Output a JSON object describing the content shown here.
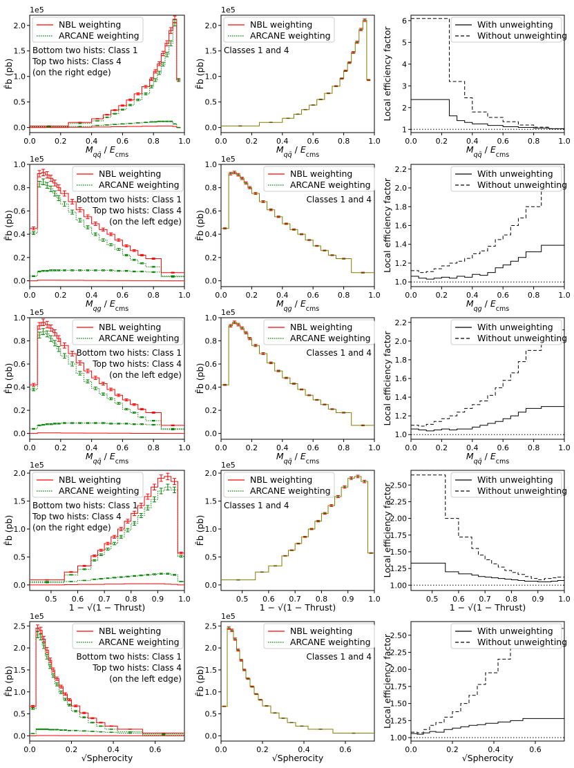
{
  "colors": {
    "nbl": "#ff0000",
    "arcane": "#008000",
    "sum": "#7f7f00",
    "line": "#000000"
  },
  "legend_labels": {
    "nbl": "NBL weighting",
    "arcane": "ARCANE weighting",
    "with": "With unweighting",
    "without": "Without unweighting"
  },
  "axis_labels": {
    "yleft": "F̂b (pb)",
    "yright": "Local efficiency factor",
    "sci": "1e5"
  },
  "chart_data": [
    {
      "row": 1,
      "xlabel": "M_qq̄ / E_cms",
      "xlim": [
        0,
        1
      ],
      "xticks": [
        0,
        0.2,
        0.4,
        0.6,
        0.8,
        1.0
      ],
      "xtick_labels": [
        "0.0",
        "0.2",
        "0.4",
        "0.6",
        "0.8",
        "1.0"
      ],
      "ylim": [
        -0.1,
        2.2
      ],
      "yticks": [
        0,
        0.5,
        1.0,
        1.5,
        2.0
      ],
      "ytick_labels": [
        "0.0",
        "0.5",
        "1.0",
        "1.5",
        "2.0"
      ],
      "note": [
        "Bottom two hists: Class 1",
        "Top two hists: Class 4",
        "(on the right edge)"
      ],
      "note_align": "left",
      "middle_note": "Classes 1 and 4",
      "middle_note_pos": "top-left",
      "edges": [
        0,
        0.25,
        0.4,
        0.475,
        0.525,
        0.575,
        0.625,
        0.675,
        0.725,
        0.775,
        0.8,
        0.825,
        0.85,
        0.875,
        0.9,
        0.925,
        0.95,
        0.975,
        1.0
      ],
      "nbl_top": [
        0.03,
        0.1,
        0.17,
        0.25,
        0.34,
        0.43,
        0.54,
        0.66,
        0.8,
        0.95,
        1.1,
        1.25,
        1.45,
        1.65,
        1.9,
        2.12,
        0.93
      ],
      "arcane_top": [
        0.02,
        0.08,
        0.13,
        0.2,
        0.27,
        0.35,
        0.44,
        0.54,
        0.66,
        0.8,
        0.93,
        1.07,
        1.24,
        1.43,
        1.65,
        2.05,
        0.93
      ],
      "nbl_bot": [
        0.0,
        0.005,
        0.01,
        0.01,
        0.015,
        0.015,
        0.02,
        0.02,
        0.025,
        0.025,
        0.025,
        0.03,
        0.03,
        0.03,
        0.03,
        0.02,
        0.0
      ],
      "arcane_bot": [
        0.01,
        0.02,
        0.04,
        0.05,
        0.06,
        0.07,
        0.08,
        0.09,
        0.1,
        0.11,
        0.11,
        0.12,
        0.12,
        0.12,
        0.12,
        0.07,
        0.0
      ],
      "sum": [
        0.03,
        0.1,
        0.18,
        0.26,
        0.35,
        0.44,
        0.55,
        0.67,
        0.81,
        0.96,
        1.11,
        1.27,
        1.47,
        1.67,
        1.92,
        2.1,
        0.93
      ],
      "eff_ylim": [
        0.85,
        6.25
      ],
      "eff_yticks": [
        1,
        2,
        3,
        4,
        5,
        6
      ],
      "eff_ytick_labels": [
        "1",
        "2",
        "3",
        "4",
        "5",
        "6"
      ],
      "eff_edges": [
        0,
        0.25,
        0.3,
        0.35,
        0.4,
        0.5,
        0.6,
        0.7,
        0.8,
        0.9,
        1.0
      ],
      "eff_with": [
        2.37,
        1.62,
        1.4,
        1.32,
        1.25,
        1.18,
        1.12,
        1.09,
        1.06,
        1.03
      ],
      "eff_without": [
        6.1,
        3.2,
        3.2,
        2.45,
        1.8,
        1.55,
        1.35,
        1.2,
        1.1,
        1.03
      ]
    },
    {
      "row": 2,
      "xlabel": "M_qg / E_cms",
      "xlim": [
        0,
        1
      ],
      "xticks": [
        0,
        0.2,
        0.4,
        0.6,
        0.8,
        1.0
      ],
      "xtick_labels": [
        "0.0",
        "0.2",
        "0.4",
        "0.6",
        "0.8",
        "1.0"
      ],
      "ylim": [
        -0.05,
        1.0
      ],
      "yticks": [
        0,
        0.2,
        0.4,
        0.6,
        0.8,
        1.0
      ],
      "ytick_labels": [
        "0.0",
        "0.2",
        "0.4",
        "0.6",
        "0.8",
        "1.0"
      ],
      "note": [
        "Bottom two hists: Class 1",
        "Top two hists: Class 4",
        "(on the left edge)"
      ],
      "note_align": "right",
      "middle_note": "Classes 1 and 4",
      "middle_note_pos": "top-right",
      "edges": [
        0,
        0.05,
        0.075,
        0.1,
        0.125,
        0.15,
        0.175,
        0.2,
        0.25,
        0.3,
        0.35,
        0.4,
        0.45,
        0.5,
        0.55,
        0.6,
        0.65,
        0.7,
        0.75,
        0.85,
        1.0
      ],
      "nbl_top": [
        0.45,
        0.92,
        0.93,
        0.91,
        0.88,
        0.84,
        0.8,
        0.75,
        0.68,
        0.61,
        0.55,
        0.49,
        0.44,
        0.4,
        0.35,
        0.3,
        0.26,
        0.22,
        0.19,
        0.07
      ],
      "arcane_top": [
        0.41,
        0.83,
        0.85,
        0.82,
        0.79,
        0.75,
        0.71,
        0.66,
        0.59,
        0.52,
        0.46,
        0.4,
        0.35,
        0.31,
        0.27,
        0.22,
        0.18,
        0.15,
        0.12,
        0.04
      ],
      "nbl_bot": [
        0.0,
        0.005,
        0.005,
        0.005,
        0.005,
        0.005,
        0.005,
        0.004,
        0.004,
        0.004,
        0.003,
        0.003,
        0.003,
        0.002,
        0.002,
        0.002,
        0.001,
        0.001,
        0.001,
        0.0
      ],
      "arcane_bot": [
        0.04,
        0.08,
        0.085,
        0.085,
        0.09,
        0.09,
        0.09,
        0.09,
        0.09,
        0.09,
        0.09,
        0.09,
        0.09,
        0.09,
        0.085,
        0.085,
        0.08,
        0.08,
        0.075,
        0.035
      ],
      "sum": [
        0.45,
        0.92,
        0.93,
        0.91,
        0.88,
        0.84,
        0.8,
        0.75,
        0.68,
        0.61,
        0.55,
        0.49,
        0.44,
        0.4,
        0.35,
        0.3,
        0.26,
        0.22,
        0.19,
        0.07
      ],
      "eff_ylim": [
        0.95,
        2.25
      ],
      "eff_yticks": [
        1.0,
        1.2,
        1.4,
        1.6,
        1.8,
        2.0,
        2.2
      ],
      "eff_ytick_labels": [
        "1.0",
        "1.2",
        "1.4",
        "1.6",
        "1.8",
        "2.0",
        "2.2"
      ],
      "eff_edges": [
        0,
        0.05,
        0.1,
        0.15,
        0.2,
        0.25,
        0.3,
        0.35,
        0.4,
        0.45,
        0.5,
        0.55,
        0.6,
        0.65,
        0.7,
        0.75,
        0.85,
        1.0
      ],
      "eff_with": [
        1.06,
        1.04,
        1.03,
        1.04,
        1.05,
        1.04,
        1.06,
        1.05,
        1.08,
        1.07,
        1.1,
        1.15,
        1.18,
        1.22,
        1.26,
        1.32,
        1.39
      ],
      "eff_without": [
        1.12,
        1.1,
        1.11,
        1.14,
        1.17,
        1.2,
        1.22,
        1.25,
        1.3,
        1.33,
        1.38,
        1.45,
        1.5,
        1.6,
        1.68,
        1.8,
        2.22
      ]
    },
    {
      "row": 3,
      "xlabel": "M_qq̄ / E_cms",
      "xlim": [
        0,
        1
      ],
      "xticks": [
        0,
        0.2,
        0.4,
        0.6,
        0.8,
        1.0
      ],
      "xtick_labels": [
        "0.0",
        "0.2",
        "0.4",
        "0.6",
        "0.8",
        "1.0"
      ],
      "ylim": [
        -0.05,
        1.0
      ],
      "yticks": [
        0,
        0.2,
        0.4,
        0.6,
        0.8,
        1.0
      ],
      "ytick_labels": [
        "0.0",
        "0.2",
        "0.4",
        "0.6",
        "0.8",
        "1.0"
      ],
      "note": [
        "Bottom two hists: Class 1",
        "Top two hists: Class 4",
        "(on the left edge)"
      ],
      "note_align": "right",
      "middle_note": "Classes 1 and 4",
      "middle_note_pos": "top-right",
      "edges": [
        0,
        0.05,
        0.075,
        0.1,
        0.125,
        0.15,
        0.175,
        0.2,
        0.25,
        0.3,
        0.35,
        0.4,
        0.45,
        0.5,
        0.55,
        0.6,
        0.65,
        0.7,
        0.75,
        0.85,
        1.0
      ],
      "nbl_top": [
        0.42,
        0.93,
        0.96,
        0.94,
        0.91,
        0.87,
        0.82,
        0.76,
        0.69,
        0.61,
        0.54,
        0.48,
        0.43,
        0.38,
        0.33,
        0.29,
        0.25,
        0.21,
        0.18,
        0.07
      ],
      "arcane_top": [
        0.38,
        0.85,
        0.88,
        0.86,
        0.82,
        0.78,
        0.73,
        0.67,
        0.6,
        0.52,
        0.45,
        0.39,
        0.34,
        0.3,
        0.26,
        0.21,
        0.18,
        0.14,
        0.11,
        0.04
      ],
      "nbl_bot": [
        0.0,
        0.005,
        0.005,
        0.005,
        0.005,
        0.005,
        0.005,
        0.004,
        0.004,
        0.004,
        0.003,
        0.003,
        0.003,
        0.002,
        0.002,
        0.002,
        0.001,
        0.001,
        0.001,
        0.0
      ],
      "arcane_bot": [
        0.04,
        0.07,
        0.075,
        0.08,
        0.08,
        0.085,
        0.085,
        0.09,
        0.09,
        0.09,
        0.09,
        0.09,
        0.09,
        0.085,
        0.085,
        0.085,
        0.08,
        0.08,
        0.075,
        0.035
      ],
      "sum": [
        0.42,
        0.93,
        0.96,
        0.94,
        0.91,
        0.87,
        0.82,
        0.76,
        0.69,
        0.61,
        0.54,
        0.48,
        0.43,
        0.38,
        0.33,
        0.29,
        0.25,
        0.21,
        0.18,
        0.07
      ],
      "eff_ylim": [
        0.95,
        2.25
      ],
      "eff_yticks": [
        1.0,
        1.2,
        1.4,
        1.6,
        1.8,
        2.0,
        2.2
      ],
      "eff_ytick_labels": [
        "1.0",
        "1.2",
        "1.4",
        "1.6",
        "1.8",
        "2.0",
        "2.2"
      ],
      "eff_edges": [
        0,
        0.05,
        0.1,
        0.15,
        0.2,
        0.25,
        0.3,
        0.35,
        0.4,
        0.45,
        0.5,
        0.55,
        0.6,
        0.65,
        0.7,
        0.75,
        0.85,
        1.0
      ],
      "eff_with": [
        1.06,
        1.05,
        1.04,
        1.05,
        1.06,
        1.05,
        1.06,
        1.06,
        1.08,
        1.1,
        1.12,
        1.14,
        1.17,
        1.2,
        1.24,
        1.28,
        1.3
      ],
      "eff_without": [
        1.1,
        1.09,
        1.11,
        1.14,
        1.17,
        1.2,
        1.24,
        1.28,
        1.32,
        1.36,
        1.42,
        1.5,
        1.58,
        1.66,
        1.78,
        1.9,
        2.12
      ]
    },
    {
      "row": 4,
      "xlabel": "1 − √(1 − Thrust)",
      "xlim": [
        0.42,
        1.0
      ],
      "xticks": [
        0.5,
        0.6,
        0.7,
        0.8,
        0.9,
        1.0
      ],
      "xtick_labels": [
        "0.5",
        "0.6",
        "0.7",
        "0.8",
        "0.9",
        "1.0"
      ],
      "ylim": [
        -0.1,
        2.05
      ],
      "yticks": [
        0,
        0.5,
        1.0,
        1.5,
        2.0
      ],
      "ytick_labels": [
        "0.0",
        "0.5",
        "1.0",
        "1.5",
        "2.0"
      ],
      "note": [
        "Bottom two hists: Class 1",
        "Top two hists: Class 4",
        "(on the right edge)"
      ],
      "note_align": "left",
      "middle_note": "Classes 1 and 4",
      "middle_note_pos": "top-left",
      "edges": [
        0.42,
        0.55,
        0.6,
        0.65,
        0.675,
        0.7,
        0.725,
        0.75,
        0.775,
        0.8,
        0.825,
        0.85,
        0.875,
        0.9,
        0.925,
        0.95,
        0.975,
        1.0
      ],
      "nbl_top": [
        0.09,
        0.23,
        0.34,
        0.52,
        0.62,
        0.74,
        0.86,
        1.0,
        1.14,
        1.28,
        1.42,
        1.58,
        1.75,
        1.91,
        1.94,
        1.85,
        0.57
      ],
      "arcane_top": [
        0.06,
        0.18,
        0.28,
        0.44,
        0.54,
        0.64,
        0.74,
        0.86,
        0.98,
        1.1,
        1.24,
        1.38,
        1.53,
        1.68,
        1.75,
        1.7,
        0.51
      ],
      "nbl_bot": [
        0.0,
        0.005,
        0.01,
        0.01,
        0.01,
        0.015,
        0.015,
        0.015,
        0.02,
        0.02,
        0.02,
        0.02,
        0.02,
        0.02,
        0.015,
        0.01,
        0.0
      ],
      "arcane_bot": [
        0.04,
        0.06,
        0.08,
        0.1,
        0.11,
        0.12,
        0.13,
        0.14,
        0.15,
        0.16,
        0.17,
        0.18,
        0.19,
        0.2,
        0.2,
        0.18,
        0.06
      ],
      "sum": [
        0.09,
        0.23,
        0.34,
        0.52,
        0.62,
        0.74,
        0.86,
        1.0,
        1.14,
        1.28,
        1.42,
        1.58,
        1.75,
        1.91,
        1.94,
        1.85,
        0.57
      ],
      "eff_ylim": [
        0.92,
        2.72
      ],
      "eff_yticks": [
        1.0,
        1.25,
        1.5,
        1.75,
        2.0,
        2.25,
        2.5
      ],
      "eff_ytick_labels": [
        "1.00",
        "1.25",
        "1.50",
        "1.75",
        "2.00",
        "2.25",
        "2.50"
      ],
      "eff_edges": [
        0.42,
        0.55,
        0.6,
        0.65,
        0.675,
        0.7,
        0.725,
        0.75,
        0.775,
        0.8,
        0.825,
        0.85,
        0.875,
        0.9,
        0.925,
        0.95,
        0.975,
        1.0
      ],
      "eff_with": [
        1.33,
        1.2,
        1.17,
        1.15,
        1.13,
        1.12,
        1.11,
        1.1,
        1.09,
        1.08,
        1.07,
        1.06,
        1.06,
        1.05,
        1.05,
        1.06,
        1.07
      ],
      "eff_without": [
        2.65,
        2.0,
        1.72,
        1.55,
        1.45,
        1.38,
        1.32,
        1.27,
        1.22,
        1.19,
        1.16,
        1.13,
        1.1,
        1.08,
        1.1,
        1.11,
        1.12
      ]
    },
    {
      "row": 5,
      "xlabel": "√Spherocity",
      "xlim": [
        0,
        0.74
      ],
      "xticks": [
        0,
        0.2,
        0.4,
        0.6
      ],
      "xtick_labels": [
        "0.0",
        "0.2",
        "0.4",
        "0.6"
      ],
      "ylim": [
        -0.12,
        2.6
      ],
      "yticks": [
        0,
        0.5,
        1.0,
        1.5,
        2.0,
        2.5
      ],
      "ytick_labels": [
        "0.0",
        "0.5",
        "1.0",
        "1.5",
        "2.0",
        "2.5"
      ],
      "note": [
        "Bottom two hists: Class 1",
        "Top two hists: Class 4",
        "(on the left edge)"
      ],
      "note_align": "right",
      "middle_note": "Classes 1 and 4",
      "middle_note_pos": "top-right",
      "edges": [
        0,
        0.03,
        0.045,
        0.06,
        0.075,
        0.09,
        0.105,
        0.12,
        0.14,
        0.16,
        0.18,
        0.2,
        0.24,
        0.28,
        0.32,
        0.36,
        0.42,
        0.54,
        0.74
      ],
      "nbl_top": [
        0.67,
        2.45,
        2.4,
        2.2,
        1.95,
        1.72,
        1.5,
        1.3,
        1.12,
        0.95,
        0.82,
        0.68,
        0.52,
        0.4,
        0.3,
        0.22,
        0.15,
        0.06
      ],
      "arcane_top": [
        0.62,
        2.3,
        2.25,
        2.05,
        1.8,
        1.58,
        1.37,
        1.17,
        0.99,
        0.83,
        0.7,
        0.56,
        0.42,
        0.3,
        0.22,
        0.15,
        0.09,
        0.02
      ],
      "nbl_bot": [
        0.0,
        0.005,
        0.005,
        0.005,
        0.005,
        0.005,
        0.005,
        0.005,
        0.004,
        0.004,
        0.004,
        0.003,
        0.003,
        0.002,
        0.002,
        0.002,
        0.001,
        0.0
      ],
      "arcane_bot": [
        0.05,
        0.15,
        0.15,
        0.15,
        0.15,
        0.14,
        0.14,
        0.14,
        0.13,
        0.13,
        0.12,
        0.12,
        0.11,
        0.1,
        0.09,
        0.08,
        0.06,
        0.04
      ],
      "sum": [
        0.67,
        2.45,
        2.4,
        2.2,
        1.95,
        1.72,
        1.5,
        1.3,
        1.12,
        0.95,
        0.82,
        0.68,
        0.52,
        0.4,
        0.3,
        0.22,
        0.15,
        0.06
      ],
      "eff_ylim": [
        0.95,
        2.7
      ],
      "eff_yticks": [
        1.0,
        1.25,
        1.5,
        1.75,
        2.0,
        2.25,
        2.5
      ],
      "eff_ytick_labels": [
        "1.00",
        "1.25",
        "1.50",
        "1.75",
        "2.00",
        "2.25",
        "2.50"
      ],
      "eff_edges": [
        0,
        0.03,
        0.06,
        0.09,
        0.12,
        0.16,
        0.2,
        0.24,
        0.28,
        0.32,
        0.36,
        0.42,
        0.48,
        0.54,
        0.74
      ],
      "eff_with": [
        1.06,
        1.05,
        1.07,
        1.09,
        1.08,
        1.12,
        1.14,
        1.16,
        1.18,
        1.19,
        1.21,
        1.23,
        1.25,
        1.28
      ],
      "eff_without": [
        1.08,
        1.07,
        1.12,
        1.18,
        1.22,
        1.3,
        1.38,
        1.5,
        1.62,
        1.78,
        1.95,
        2.15,
        2.6,
        2.6
      ]
    }
  ]
}
